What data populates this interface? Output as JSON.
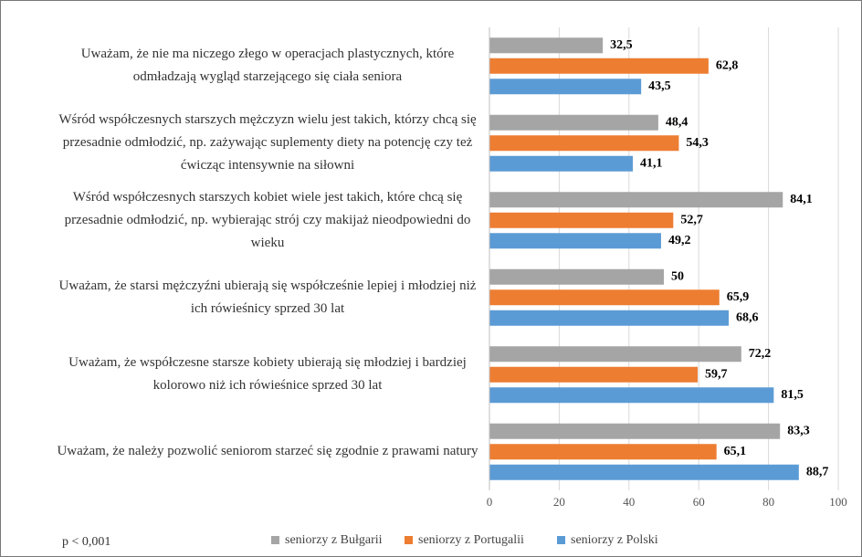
{
  "chart_data": {
    "type": "hbar",
    "categories": [
      "Uważam, że nie ma niczego złego w operacjach plastycznych, które odmładzają wygląd starzejącego się ciała seniora",
      "Wśród współczesnych starszych mężczyzn wielu jest takich, którzy chcą się przesadnie odmłodzić, np. zażywając suplementy diety na potencję czy też ćwicząc intensywnie na siłowni",
      "Wśród współczesnych starszych kobiet wiele jest takich, które chcą się przesadnie odmłodzić, np. wybierając strój czy makijaż nieodpowiedni do wieku",
      "Uważam, że starsi mężczyźni ubierają się współcześnie lepiej i młodziej niż ich rówieśnicy sprzed 30 lat",
      "Uważam, że współczesne starsze kobiety ubierają się młodziej i bardziej kolorowo niż ich rówieśnice sprzed 30 lat",
      "Uważam, że należy pozwolić seniorom starzeć się zgodnie z prawami natury"
    ],
    "series": [
      {
        "name": "seniorzy z Bułgarii",
        "color": "#a5a5a5",
        "values": [
          32.5,
          48.4,
          84.1,
          50,
          72.2,
          83.3
        ],
        "value_labels": [
          "32,5",
          "48,4",
          "84,1",
          "50",
          "72,2",
          "83,3"
        ]
      },
      {
        "name": "seniorzy z Portugalii",
        "color": "#ed7d31",
        "values": [
          62.8,
          54.3,
          52.7,
          65.9,
          59.7,
          65.1
        ],
        "value_labels": [
          "62,8",
          "54,3",
          "52,7",
          "65,9",
          "59,7",
          "65,1"
        ]
      },
      {
        "name": "seniorzy z Polski",
        "color": "#5b9bd5",
        "values": [
          43.5,
          41.1,
          49.2,
          68.6,
          81.5,
          88.7
        ],
        "value_labels": [
          "43,5",
          "41,1",
          "49,2",
          "68,6",
          "81,5",
          "88,7"
        ]
      }
    ],
    "xlim": [
      0,
      100
    ],
    "xticks": [
      0,
      20,
      40,
      60,
      80,
      100
    ],
    "grid": true,
    "annotation": "p < 0,001",
    "legend": "bottom"
  }
}
